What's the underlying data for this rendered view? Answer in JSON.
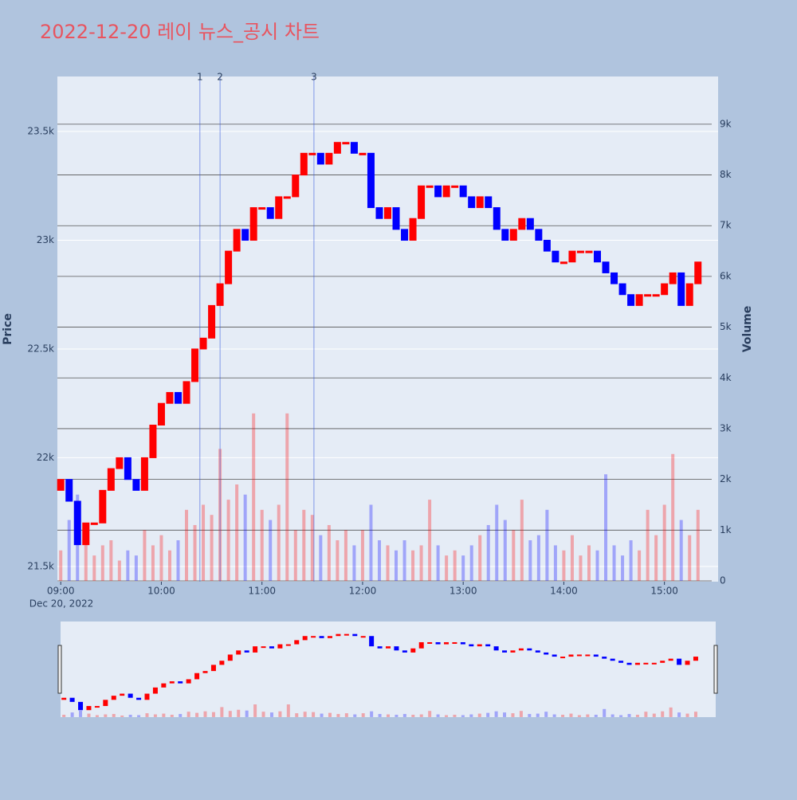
{
  "chart_data": {
    "type": "candlestick",
    "title": "2022-12-20 레이 뉴스_공시 차트",
    "y_title": "Price",
    "y2_title": "Volume",
    "x_date_label": "Dec 20, 2022",
    "x": [
      "09:00",
      "09:05",
      "09:10",
      "09:15",
      "09:20",
      "09:25",
      "09:30",
      "09:35",
      "09:40",
      "09:45",
      "09:50",
      "09:55",
      "10:00",
      "10:05",
      "10:10",
      "10:15",
      "10:20",
      "10:25",
      "10:30",
      "10:35",
      "10:40",
      "10:45",
      "10:50",
      "10:55",
      "11:00",
      "11:05",
      "11:10",
      "11:15",
      "11:20",
      "11:25",
      "11:30",
      "11:35",
      "11:40",
      "11:45",
      "11:50",
      "11:55",
      "12:00",
      "12:05",
      "12:10",
      "12:15",
      "12:20",
      "12:25",
      "12:30",
      "12:35",
      "12:40",
      "12:45",
      "12:50",
      "12:55",
      "13:00",
      "13:05",
      "13:10",
      "13:15",
      "13:20",
      "13:25",
      "13:30",
      "13:35",
      "13:40",
      "13:45",
      "13:50",
      "13:55",
      "14:00",
      "14:05",
      "14:10",
      "14:15",
      "14:20",
      "14:25",
      "14:30",
      "14:35",
      "14:40",
      "14:45",
      "14:50",
      "14:55",
      "15:00",
      "15:05",
      "15:10",
      "15:15",
      "15:20"
    ],
    "open": [
      21850,
      21900,
      21800,
      21600,
      21700,
      21700,
      21850,
      21950,
      22000,
      21900,
      21850,
      22000,
      22150,
      22250,
      22300,
      22250,
      22350,
      22500,
      22550,
      22700,
      22800,
      22950,
      23050,
      23000,
      23150,
      23150,
      23100,
      23200,
      23200,
      23300,
      23400,
      23400,
      23350,
      23400,
      23450,
      23450,
      23400,
      23400,
      23150,
      23100,
      23150,
      23050,
      23000,
      23100,
      23250,
      23250,
      23200,
      23250,
      23250,
      23200,
      23150,
      23200,
      23150,
      23050,
      23000,
      23050,
      23100,
      23050,
      23000,
      22950,
      22900,
      22900,
      22950,
      22950,
      22950,
      22900,
      22850,
      22800,
      22750,
      22700,
      22750,
      22750,
      22750,
      22800,
      22850,
      22700,
      22800
    ],
    "close": [
      21900,
      21800,
      21600,
      21700,
      21700,
      21850,
      21950,
      22000,
      21900,
      21850,
      22000,
      22150,
      22250,
      22300,
      22250,
      22350,
      22500,
      22550,
      22700,
      22800,
      22950,
      23050,
      23000,
      23150,
      23150,
      23100,
      23200,
      23200,
      23300,
      23400,
      23400,
      23350,
      23400,
      23450,
      23450,
      23400,
      23400,
      23150,
      23100,
      23150,
      23050,
      23000,
      23100,
      23250,
      23250,
      23200,
      23250,
      23250,
      23200,
      23150,
      23200,
      23150,
      23050,
      23000,
      23050,
      23100,
      23050,
      23000,
      22950,
      22900,
      22900,
      22950,
      22950,
      22950,
      22900,
      22850,
      22800,
      22750,
      22700,
      22750,
      22750,
      22750,
      22800,
      22850,
      22700,
      22800,
      22900
    ],
    "volume": [
      600,
      1200,
      1700,
      900,
      500,
      700,
      800,
      400,
      600,
      500,
      1000,
      700,
      900,
      600,
      800,
      1400,
      1100,
      1500,
      1300,
      2600,
      1600,
      1900,
      1700,
      3300,
      1400,
      1200,
      1500,
      3300,
      1000,
      1400,
      1300,
      900,
      1100,
      800,
      1000,
      700,
      1000,
      1500,
      800,
      700,
      600,
      800,
      600,
      700,
      1600,
      700,
      500,
      600,
      500,
      700,
      900,
      1100,
      1500,
      1200,
      1000,
      1600,
      800,
      900,
      1400,
      700,
      600,
      900,
      500,
      700,
      600,
      2100,
      700,
      500,
      800,
      600,
      1400,
      900,
      1500,
      2500,
      1200,
      900,
      1400
    ],
    "up_color": "#ff0000",
    "down_color": "#0000ff",
    "xlim": [
      "08:58",
      "15:32"
    ],
    "xticks": [
      "09:00",
      "10:00",
      "11:00",
      "12:00",
      "13:00",
      "14:00",
      "15:00"
    ],
    "ylim": [
      21430,
      23753
    ],
    "yticks": [
      {
        "value": 21500,
        "label": "21.5k"
      },
      {
        "value": 22000,
        "label": "22k"
      },
      {
        "value": 22500,
        "label": "22.5k"
      },
      {
        "value": 23000,
        "label": "23k"
      },
      {
        "value": 23500,
        "label": "23.5k"
      }
    ],
    "y2lim": [
      -16,
      9940
    ],
    "y2ticks": [
      0,
      {
        "value": 1000,
        "label": "1k"
      },
      {
        "value": 2000,
        "label": "2k"
      },
      {
        "value": 3000,
        "label": "3k"
      },
      {
        "value": 4000,
        "label": "4k"
      },
      {
        "value": 5000,
        "label": "5k"
      },
      {
        "value": 6000,
        "label": "6k"
      },
      {
        "value": 7000,
        "label": "7k"
      },
      {
        "value": 8000,
        "label": "8k"
      },
      {
        "value": 9000,
        "label": "9k"
      }
    ],
    "annotations": [
      {
        "x": "10:23",
        "text": "1"
      },
      {
        "x": "10:35",
        "text": "2"
      },
      {
        "x": "11:31",
        "text": "3"
      }
    ],
    "grid": true
  }
}
